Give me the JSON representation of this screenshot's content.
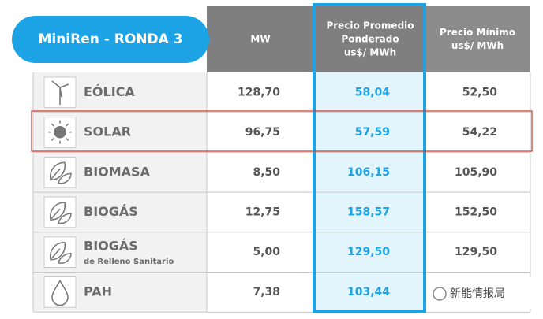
{
  "header": {
    "title": "MiniRen - RONDA 3",
    "columns": [
      "MW",
      "Precio Promedio Ponderado us$/ MWh",
      "Precio Mínimo us$/ MWh"
    ],
    "column_lines": [
      [
        "MW"
      ],
      [
        "Precio Promedio",
        "Ponderado",
        "us$/ MWh"
      ],
      [
        "Precio Mínimo",
        "us$/ MWh"
      ]
    ]
  },
  "table": {
    "rows": [
      {
        "name": "EÓLICA",
        "mw": "128,70",
        "avg": "58,04",
        "min": "52,50"
      },
      {
        "name": "SOLAR",
        "mw": "96,75",
        "avg": "57,59",
        "min": "54,22"
      },
      {
        "name": "BIOMASA",
        "mw": "8,50",
        "avg": "106,15",
        "min": "105,90"
      },
      {
        "name": "BIOGÁS",
        "mw": "12,75",
        "avg": "158,57",
        "min": "152,50"
      },
      {
        "name": "BIOGÁS",
        "note": "de Relleno Sanitario",
        "mw": "5,00",
        "avg": "129,50",
        "min": "129,50"
      },
      {
        "name": "PAH",
        "mw": "7,38",
        "avg": "103,44"
      }
    ]
  },
  "watermark": "新能情报局"
}
